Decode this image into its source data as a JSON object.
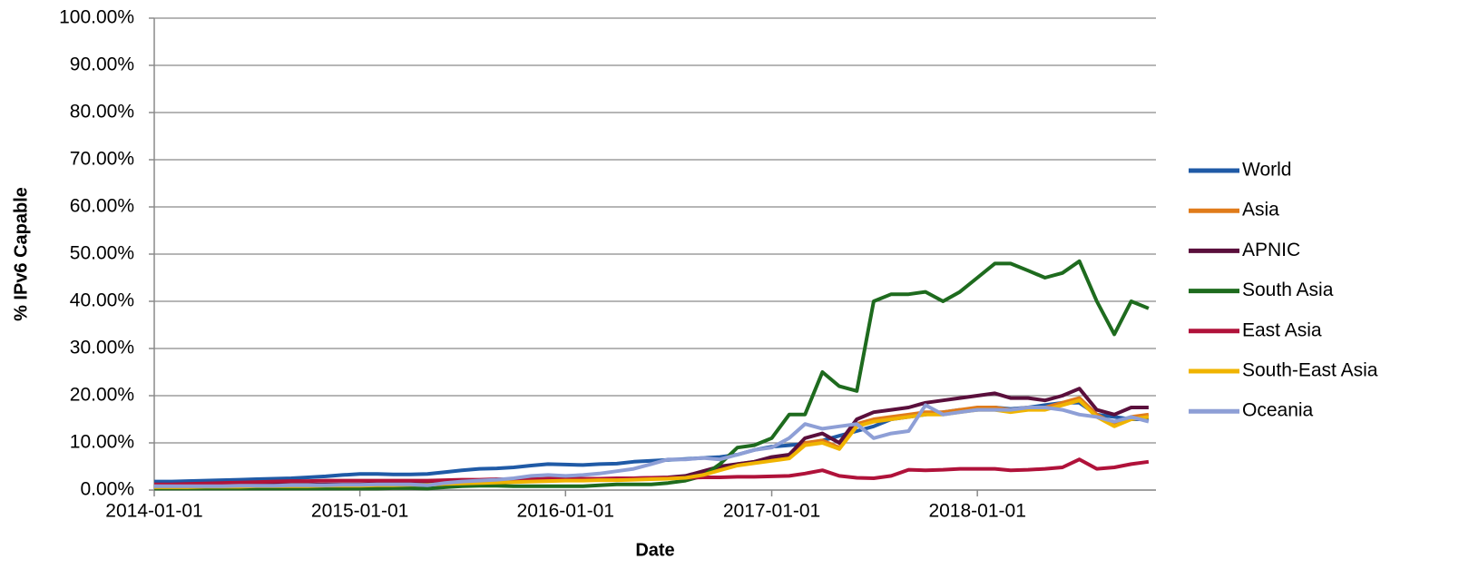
{
  "chart_data": {
    "type": "line",
    "xlabel": "Date",
    "ylabel": "% IPv6 Capable",
    "x": [
      "2014-01-01",
      "2014-02-01",
      "2014-03-01",
      "2014-04-01",
      "2014-05-01",
      "2014-06-01",
      "2014-07-01",
      "2014-08-01",
      "2014-09-01",
      "2014-10-01",
      "2014-11-01",
      "2014-12-01",
      "2015-01-01",
      "2015-02-01",
      "2015-03-01",
      "2015-04-01",
      "2015-05-01",
      "2015-06-01",
      "2015-07-01",
      "2015-08-01",
      "2015-09-01",
      "2015-10-01",
      "2015-11-01",
      "2015-12-01",
      "2016-01-01",
      "2016-02-01",
      "2016-03-01",
      "2016-04-01",
      "2016-05-01",
      "2016-06-01",
      "2016-07-01",
      "2016-08-01",
      "2016-09-01",
      "2016-10-01",
      "2016-11-01",
      "2016-12-01",
      "2017-01-01",
      "2017-02-01",
      "2017-03-01",
      "2017-04-01",
      "2017-05-01",
      "2017-06-01",
      "2017-07-01",
      "2017-08-01",
      "2017-09-01",
      "2017-10-01",
      "2017-11-01",
      "2017-12-01",
      "2018-01-01",
      "2018-02-01",
      "2018-03-01",
      "2018-04-01",
      "2018-05-01",
      "2018-06-01",
      "2018-07-01",
      "2018-08-01",
      "2018-09-01",
      "2018-10-01",
      "2018-11-01"
    ],
    "xlim": [
      "2014-01-01",
      "2018-11-14"
    ],
    "xticks": [
      "2014-01-01",
      "2015-01-01",
      "2016-01-01",
      "2017-01-01",
      "2018-01-01"
    ],
    "ylim": [
      0,
      100
    ],
    "yticks": [
      {
        "value": 0,
        "label": "0.00%"
      },
      {
        "value": 10,
        "label": "10.00%"
      },
      {
        "value": 20,
        "label": "20.00%"
      },
      {
        "value": 30,
        "label": "30.00%"
      },
      {
        "value": 40,
        "label": "40.00%"
      },
      {
        "value": 50,
        "label": "50.00%"
      },
      {
        "value": 60,
        "label": "60.00%"
      },
      {
        "value": 70,
        "label": "70.00%"
      },
      {
        "value": 80,
        "label": "80.00%"
      },
      {
        "value": 90,
        "label": "90.00%"
      },
      {
        "value": 100,
        "label": "100.00%"
      }
    ],
    "grid": true,
    "legend": "right",
    "series": [
      {
        "name": "World",
        "color": "#1f5aa6",
        "values": [
          1.8,
          1.8,
          1.9,
          2.0,
          2.1,
          2.2,
          2.3,
          2.4,
          2.5,
          2.7,
          2.9,
          3.2,
          3.4,
          3.4,
          3.3,
          3.3,
          3.4,
          3.8,
          4.2,
          4.5,
          4.6,
          4.8,
          5.2,
          5.5,
          5.4,
          5.3,
          5.5,
          5.6,
          6.0,
          6.2,
          6.4,
          6.6,
          6.8,
          7.0,
          7.5,
          8.5,
          9.2,
          9.5,
          9.8,
          10.5,
          11.5,
          12.5,
          13.5,
          15.0,
          15.5,
          16.0,
          16.5,
          17.0,
          17.0,
          17.5,
          17.2,
          17.5,
          18.0,
          18.5,
          18.5,
          16.0,
          15.5,
          15.0,
          15.0
        ]
      },
      {
        "name": "Asia",
        "color": "#e07b1a",
        "values": [
          0.8,
          0.8,
          0.8,
          0.9,
          0.9,
          0.9,
          1.0,
          1.0,
          1.0,
          1.0,
          1.1,
          1.1,
          1.1,
          1.2,
          1.2,
          1.3,
          1.3,
          1.5,
          1.6,
          1.7,
          1.8,
          1.9,
          2.0,
          2.1,
          2.2,
          2.2,
          2.3,
          2.3,
          2.4,
          2.5,
          2.6,
          2.8,
          3.5,
          4.5,
          5.5,
          6.0,
          6.5,
          7.0,
          10.0,
          10.5,
          9.0,
          14.0,
          15.0,
          15.5,
          16.0,
          16.5,
          16.5,
          17.0,
          17.5,
          17.5,
          17.0,
          17.5,
          17.5,
          18.5,
          19.5,
          16.0,
          14.0,
          15.5,
          16.0
        ]
      },
      {
        "name": "APNIC",
        "color": "#5a0f3c",
        "values": [
          0.9,
          0.9,
          0.9,
          1.0,
          1.0,
          1.0,
          1.1,
          1.1,
          1.1,
          1.1,
          1.2,
          1.2,
          1.2,
          1.3,
          1.3,
          1.4,
          1.4,
          1.6,
          1.7,
          1.8,
          1.9,
          2.0,
          2.1,
          2.2,
          2.3,
          2.3,
          2.4,
          2.4,
          2.5,
          2.6,
          2.7,
          3.0,
          4.0,
          5.0,
          5.5,
          6.0,
          7.0,
          7.5,
          11.0,
          12.0,
          10.0,
          15.0,
          16.5,
          17.0,
          17.5,
          18.5,
          19.0,
          19.5,
          20.0,
          20.5,
          19.5,
          19.5,
          19.0,
          20.0,
          21.5,
          17.0,
          16.0,
          17.5,
          17.5
        ]
      },
      {
        "name": "South Asia",
        "color": "#1e6b1e",
        "values": [
          0.3,
          0.3,
          0.3,
          0.3,
          0.3,
          0.3,
          0.3,
          0.3,
          0.3,
          0.3,
          0.3,
          0.3,
          0.3,
          0.3,
          0.4,
          0.4,
          0.3,
          0.6,
          0.8,
          0.9,
          0.9,
          0.8,
          0.8,
          0.8,
          0.8,
          0.8,
          1.0,
          1.2,
          1.2,
          1.2,
          1.5,
          2.0,
          3.0,
          5.5,
          9.0,
          9.5,
          11.0,
          16.0,
          16.0,
          25.0,
          22.0,
          21.0,
          40.0,
          41.5,
          41.5,
          42.0,
          40.0,
          42.0,
          45.0,
          48.0,
          48.0,
          46.5,
          45.0,
          46.0,
          48.5,
          40.0,
          33.0,
          40.0,
          38.5
        ]
      },
      {
        "name": "East Asia",
        "color": "#b0123a",
        "values": [
          1.2,
          1.2,
          1.3,
          1.4,
          1.5,
          1.6,
          1.7,
          1.8,
          1.9,
          1.9,
          2.0,
          2.0,
          2.0,
          2.0,
          2.0,
          2.0,
          2.0,
          2.1,
          2.2,
          2.2,
          2.3,
          2.3,
          2.3,
          2.4,
          2.4,
          2.4,
          2.4,
          2.5,
          2.5,
          2.6,
          2.6,
          2.6,
          2.7,
          2.7,
          2.8,
          2.8,
          2.9,
          3.0,
          3.5,
          4.2,
          3.0,
          2.6,
          2.5,
          3.0,
          4.3,
          4.2,
          4.3,
          4.5,
          4.5,
          4.5,
          4.2,
          4.3,
          4.5,
          4.8,
          6.5,
          4.5,
          4.8,
          5.5,
          6.0
        ]
      },
      {
        "name": "South-East Asia",
        "color": "#f0b400",
        "values": [
          0.6,
          0.6,
          0.6,
          0.7,
          0.7,
          0.7,
          0.8,
          0.8,
          0.8,
          0.8,
          0.9,
          0.9,
          0.9,
          1.0,
          1.0,
          1.1,
          1.1,
          1.3,
          1.4,
          1.5,
          1.6,
          1.7,
          1.8,
          1.9,
          2.0,
          2.0,
          2.1,
          2.1,
          2.2,
          2.3,
          2.4,
          2.6,
          3.2,
          4.2,
          5.2,
          5.7,
          6.2,
          6.7,
          9.5,
          10.0,
          8.7,
          13.5,
          14.5,
          15.0,
          15.5,
          16.0,
          16.0,
          16.5,
          17.0,
          17.0,
          16.5,
          17.0,
          17.0,
          18.0,
          19.0,
          15.5,
          13.5,
          15.0,
          15.5
        ]
      },
      {
        "name": "Oceania",
        "color": "#8e9fd6",
        "values": [
          0.8,
          0.8,
          0.8,
          0.8,
          0.8,
          0.9,
          0.9,
          0.9,
          1.0,
          1.0,
          1.0,
          1.1,
          1.1,
          1.2,
          1.2,
          1.2,
          1.0,
          1.5,
          1.8,
          2.0,
          2.2,
          2.5,
          3.0,
          3.2,
          3.0,
          3.2,
          3.5,
          4.0,
          4.5,
          5.5,
          6.5,
          6.5,
          6.8,
          6.5,
          7.5,
          8.5,
          9.0,
          11.0,
          14.0,
          13.0,
          13.5,
          14.0,
          11.0,
          12.0,
          12.5,
          18.0,
          16.0,
          16.5,
          17.0,
          17.0,
          17.0,
          17.5,
          17.5,
          17.0,
          16.0,
          15.5,
          14.5,
          15.5,
          14.5
        ]
      }
    ]
  }
}
